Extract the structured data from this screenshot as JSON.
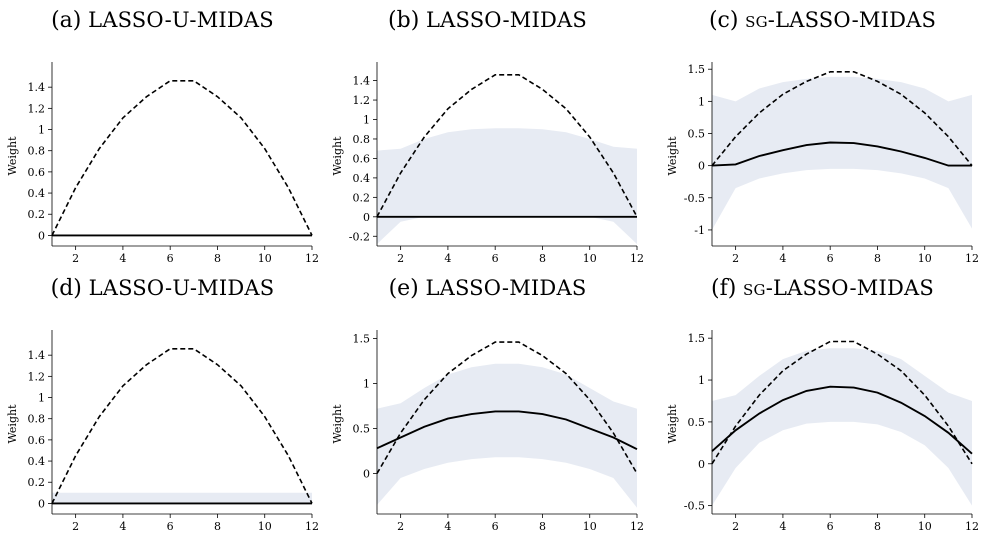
{
  "figure": {
    "panels": [
      {
        "id": "a",
        "letter": "(a)",
        "name": "LASSO-U-MIDAS"
      },
      {
        "id": "b",
        "letter": "(b)",
        "name": "LASSO-MIDAS"
      },
      {
        "id": "c",
        "letter": "(c)",
        "name": "sg-LASSO-MIDAS"
      },
      {
        "id": "d",
        "letter": "(d)",
        "name": "LASSO-U-MIDAS"
      },
      {
        "id": "e",
        "letter": "(e)",
        "name": "LASSO-MIDAS"
      },
      {
        "id": "f",
        "letter": "(f)",
        "name": "sg-LASSO-MIDAS"
      }
    ],
    "colors": {
      "band": "#e7ebf3",
      "line": "#000000",
      "axis": "#000000"
    }
  },
  "chart_data": [
    {
      "type": "line",
      "title": "(a) LASSO-U-MIDAS",
      "xlabel": "",
      "ylabel": "Weight",
      "xlim": [
        1,
        12
      ],
      "ylim": [
        -0.1,
        1.6
      ],
      "xticks": [
        2,
        4,
        6,
        8,
        10,
        12
      ],
      "yticks": [
        0,
        0.2,
        0.4,
        0.6,
        0.8,
        1,
        1.2,
        1.4
      ],
      "x": [
        1,
        2,
        3,
        4,
        5,
        6,
        7,
        8,
        9,
        10,
        11,
        12
      ],
      "series": [
        {
          "style": "dashed",
          "values": [
            0,
            0.45,
            0.82,
            1.11,
            1.31,
            1.46,
            1.46,
            1.31,
            1.11,
            0.82,
            0.45,
            0
          ]
        },
        {
          "style": "solid",
          "values": [
            0,
            0,
            0,
            0,
            0,
            0,
            0,
            0,
            0,
            0,
            0,
            0
          ]
        }
      ],
      "band": null
    },
    {
      "type": "area",
      "title": "(b) LASSO-MIDAS",
      "xlabel": "",
      "ylabel": "Weight",
      "xlim": [
        1,
        12
      ],
      "ylim": [
        -0.3,
        1.55
      ],
      "xticks": [
        2,
        4,
        6,
        8,
        10,
        12
      ],
      "yticks": [
        -0.2,
        0,
        0.2,
        0.4,
        0.6,
        0.8,
        1,
        1.2,
        1.4
      ],
      "x": [
        1,
        2,
        3,
        4,
        5,
        6,
        7,
        8,
        9,
        10,
        11,
        12
      ],
      "series": [
        {
          "style": "dashed",
          "values": [
            0,
            0.45,
            0.82,
            1.11,
            1.31,
            1.46,
            1.46,
            1.31,
            1.11,
            0.82,
            0.45,
            0
          ]
        },
        {
          "style": "solid",
          "values": [
            0,
            0,
            0,
            0,
            0,
            0,
            0,
            0,
            0,
            0,
            0,
            0
          ]
        }
      ],
      "band": {
        "lower": [
          -0.28,
          -0.05,
          0,
          0,
          0,
          0,
          0,
          0,
          0,
          0,
          -0.05,
          -0.28
        ],
        "upper": [
          0.68,
          0.7,
          0.8,
          0.87,
          0.9,
          0.91,
          0.91,
          0.9,
          0.87,
          0.8,
          0.72,
          0.7
        ]
      }
    },
    {
      "type": "area",
      "title": "(c) sg-LASSO-MIDAS",
      "xlabel": "",
      "ylabel": "Weight",
      "xlim": [
        1,
        12
      ],
      "ylim": [
        -1.25,
        1.55
      ],
      "xticks": [
        2,
        4,
        6,
        8,
        10,
        12
      ],
      "yticks": [
        -1,
        -0.5,
        0,
        0.5,
        1,
        1.5
      ],
      "x": [
        1,
        2,
        3,
        4,
        5,
        6,
        7,
        8,
        9,
        10,
        11,
        12
      ],
      "series": [
        {
          "style": "dashed",
          "values": [
            0,
            0.45,
            0.82,
            1.11,
            1.31,
            1.46,
            1.46,
            1.31,
            1.11,
            0.82,
            0.45,
            0
          ]
        },
        {
          "style": "solid",
          "values": [
            0,
            0.02,
            0.15,
            0.24,
            0.32,
            0.36,
            0.35,
            0.3,
            0.22,
            0.12,
            0,
            0
          ]
        }
      ],
      "band": {
        "lower": [
          -1,
          -0.35,
          -0.2,
          -0.12,
          -0.07,
          -0.05,
          -0.05,
          -0.07,
          -0.12,
          -0.2,
          -0.35,
          -0.98
        ],
        "upper": [
          1.1,
          1.0,
          1.2,
          1.3,
          1.35,
          1.38,
          1.38,
          1.35,
          1.3,
          1.2,
          1.0,
          1.1
        ]
      }
    },
    {
      "type": "area",
      "title": "(d) LASSO-U-MIDAS",
      "xlabel": "",
      "ylabel": "Weight",
      "xlim": [
        1,
        12
      ],
      "ylim": [
        -0.1,
        1.6
      ],
      "xticks": [
        2,
        4,
        6,
        8,
        10,
        12
      ],
      "yticks": [
        0,
        0.2,
        0.4,
        0.6,
        0.8,
        1,
        1.2,
        1.4
      ],
      "x": [
        1,
        2,
        3,
        4,
        5,
        6,
        7,
        8,
        9,
        10,
        11,
        12
      ],
      "series": [
        {
          "style": "dashed",
          "values": [
            0,
            0.45,
            0.82,
            1.11,
            1.31,
            1.46,
            1.46,
            1.31,
            1.11,
            0.82,
            0.45,
            0
          ]
        },
        {
          "style": "solid",
          "values": [
            0,
            0,
            0,
            0,
            0,
            0,
            0,
            0,
            0,
            0,
            0,
            0
          ]
        }
      ],
      "band": {
        "lower": [
          0,
          0,
          0,
          0,
          0,
          0,
          0,
          0,
          0,
          0,
          0,
          0
        ],
        "upper": [
          0.1,
          0.1,
          0.1,
          0.1,
          0.1,
          0.1,
          0.1,
          0.1,
          0.1,
          0.1,
          0.1,
          0.1
        ]
      }
    },
    {
      "type": "area",
      "title": "(e) LASSO-MIDAS",
      "xlabel": "",
      "ylabel": "Weight",
      "xlim": [
        1,
        12
      ],
      "ylim": [
        -0.45,
        1.55
      ],
      "xticks": [
        2,
        4,
        6,
        8,
        10,
        12
      ],
      "yticks": [
        0,
        0.5,
        1,
        1.5
      ],
      "x": [
        1,
        2,
        3,
        4,
        5,
        6,
        7,
        8,
        9,
        10,
        11,
        12
      ],
      "series": [
        {
          "style": "dashed",
          "values": [
            0,
            0.45,
            0.82,
            1.11,
            1.31,
            1.46,
            1.46,
            1.31,
            1.11,
            0.82,
            0.45,
            0
          ]
        },
        {
          "style": "solid",
          "values": [
            0.28,
            0.4,
            0.52,
            0.61,
            0.66,
            0.69,
            0.69,
            0.66,
            0.6,
            0.5,
            0.4,
            0.27
          ]
        }
      ],
      "band": {
        "lower": [
          -0.35,
          -0.05,
          0.05,
          0.12,
          0.16,
          0.18,
          0.18,
          0.16,
          0.12,
          0.05,
          -0.05,
          -0.38
        ],
        "upper": [
          0.72,
          0.78,
          0.95,
          1.1,
          1.18,
          1.22,
          1.22,
          1.18,
          1.1,
          0.95,
          0.8,
          0.72
        ]
      }
    },
    {
      "type": "area",
      "title": "(f) sg-LASSO-MIDAS",
      "xlabel": "",
      "ylabel": "Weight",
      "xlim": [
        1,
        12
      ],
      "ylim": [
        -0.6,
        1.55
      ],
      "xticks": [
        2,
        4,
        6,
        8,
        10,
        12
      ],
      "yticks": [
        -0.5,
        0,
        0.5,
        1,
        1.5
      ],
      "x": [
        1,
        2,
        3,
        4,
        5,
        6,
        7,
        8,
        9,
        10,
        11,
        12
      ],
      "series": [
        {
          "style": "dashed",
          "values": [
            0,
            0.45,
            0.82,
            1.11,
            1.31,
            1.46,
            1.46,
            1.31,
            1.11,
            0.82,
            0.45,
            0
          ]
        },
        {
          "style": "solid",
          "values": [
            0.15,
            0.4,
            0.6,
            0.76,
            0.87,
            0.92,
            0.91,
            0.85,
            0.73,
            0.57,
            0.37,
            0.12
          ]
        }
      ],
      "band": {
        "lower": [
          -0.5,
          -0.05,
          0.25,
          0.4,
          0.48,
          0.5,
          0.5,
          0.47,
          0.38,
          0.22,
          -0.05,
          -0.5
        ],
        "upper": [
          0.75,
          0.82,
          1.05,
          1.25,
          1.35,
          1.38,
          1.38,
          1.35,
          1.25,
          1.05,
          0.85,
          0.75
        ]
      }
    }
  ]
}
